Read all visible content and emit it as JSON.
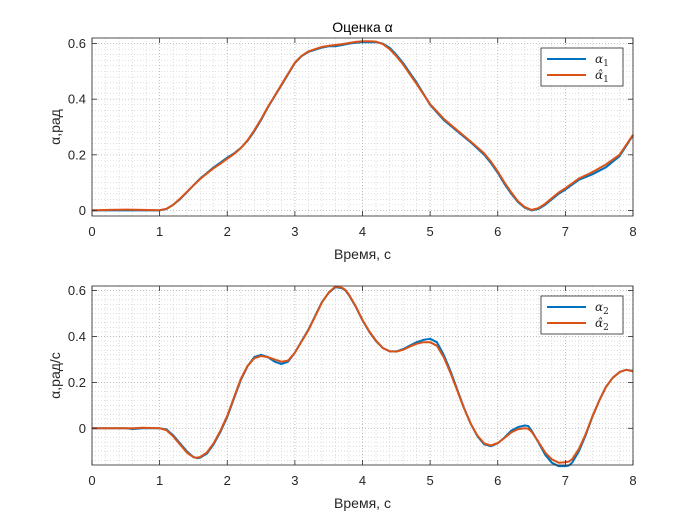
{
  "chart_data": [
    {
      "type": "line",
      "title": "Оценка α",
      "xlabel": "Время, с",
      "ylabel": "α,рад",
      "xlim": [
        0,
        8
      ],
      "ylim": [
        -0.02,
        0.62
      ],
      "xticks": [
        0,
        1,
        2,
        3,
        4,
        5,
        6,
        7,
        8
      ],
      "yticks": [
        0,
        0.2,
        0.4,
        0.6
      ],
      "grid": "minor-dotted",
      "legend_position": "top-right",
      "series": [
        {
          "name": "α1",
          "color": "#0072BD",
          "x": [
            0,
            0.25,
            0.5,
            0.75,
            1.0,
            1.1,
            1.2,
            1.3,
            1.4,
            1.5,
            1.6,
            1.7,
            1.8,
            1.9,
            2.0,
            2.1,
            2.2,
            2.3,
            2.4,
            2.5,
            2.6,
            2.7,
            2.8,
            2.9,
            3.0,
            3.1,
            3.2,
            3.3,
            3.4,
            3.5,
            3.6,
            3.7,
            3.8,
            3.9,
            4.0,
            4.1,
            4.2,
            4.3,
            4.4,
            4.5,
            4.6,
            4.7,
            4.8,
            4.9,
            5.0,
            5.2,
            5.4,
            5.6,
            5.8,
            5.9,
            6.0,
            6.1,
            6.2,
            6.3,
            6.4,
            6.5,
            6.6,
            6.7,
            6.8,
            6.9,
            7.0,
            7.2,
            7.4,
            7.6,
            7.8,
            8.0
          ],
          "values": [
            0.0,
            0.0,
            0.0,
            0.0,
            0.0,
            0.005,
            0.02,
            0.04,
            0.065,
            0.09,
            0.115,
            0.135,
            0.155,
            0.172,
            0.19,
            0.205,
            0.225,
            0.25,
            0.285,
            0.325,
            0.37,
            0.41,
            0.45,
            0.49,
            0.53,
            0.555,
            0.57,
            0.578,
            0.585,
            0.59,
            0.59,
            0.595,
            0.6,
            0.603,
            0.605,
            0.605,
            0.605,
            0.6,
            0.585,
            0.56,
            0.53,
            0.495,
            0.46,
            0.42,
            0.38,
            0.325,
            0.285,
            0.245,
            0.2,
            0.17,
            0.135,
            0.095,
            0.06,
            0.03,
            0.01,
            0.0,
            0.005,
            0.02,
            0.04,
            0.06,
            0.075,
            0.11,
            0.13,
            0.155,
            0.195,
            0.27
          ]
        },
        {
          "name": "α̂1",
          "color": "#D95319",
          "x": [
            0,
            0.25,
            0.5,
            0.75,
            1.0,
            1.1,
            1.2,
            1.3,
            1.4,
            1.5,
            1.6,
            1.7,
            1.8,
            1.9,
            2.0,
            2.1,
            2.2,
            2.3,
            2.4,
            2.5,
            2.6,
            2.7,
            2.8,
            2.9,
            3.0,
            3.1,
            3.2,
            3.3,
            3.4,
            3.5,
            3.6,
            3.7,
            3.8,
            3.9,
            4.0,
            4.1,
            4.2,
            4.3,
            4.4,
            4.5,
            4.6,
            4.7,
            4.8,
            4.9,
            5.0,
            5.2,
            5.4,
            5.6,
            5.8,
            5.9,
            6.0,
            6.1,
            6.2,
            6.3,
            6.4,
            6.5,
            6.6,
            6.7,
            6.8,
            6.9,
            7.0,
            7.2,
            7.4,
            7.6,
            7.8,
            8.0
          ],
          "values": [
            0.0,
            0.002,
            0.003,
            0.002,
            0.001,
            0.006,
            0.02,
            0.042,
            0.066,
            0.09,
            0.113,
            0.133,
            0.152,
            0.168,
            0.186,
            0.203,
            0.224,
            0.252,
            0.288,
            0.328,
            0.372,
            0.412,
            0.452,
            0.492,
            0.532,
            0.556,
            0.572,
            0.58,
            0.588,
            0.592,
            0.595,
            0.598,
            0.602,
            0.606,
            0.608,
            0.608,
            0.607,
            0.598,
            0.58,
            0.555,
            0.525,
            0.49,
            0.455,
            0.418,
            0.382,
            0.33,
            0.288,
            0.248,
            0.205,
            0.175,
            0.14,
            0.1,
            0.065,
            0.033,
            0.012,
            0.002,
            0.008,
            0.024,
            0.044,
            0.064,
            0.08,
            0.115,
            0.138,
            0.165,
            0.2,
            0.272
          ]
        }
      ]
    },
    {
      "type": "line",
      "title": "",
      "xlabel": "Время, с",
      "ylabel": "α,рад/с",
      "xlim": [
        0,
        8
      ],
      "ylim": [
        -0.16,
        0.62
      ],
      "xticks": [
        0,
        1,
        2,
        3,
        4,
        5,
        6,
        7,
        8
      ],
      "yticks": [
        0,
        0.2,
        0.4,
        0.6
      ],
      "grid": "minor-dotted",
      "legend_position": "top-right",
      "series": [
        {
          "name": "α2",
          "color": "#0072BD",
          "x": [
            0,
            0.25,
            0.5,
            0.6,
            0.75,
            1.0,
            1.1,
            1.2,
            1.3,
            1.4,
            1.5,
            1.55,
            1.6,
            1.7,
            1.8,
            1.9,
            2.0,
            2.1,
            2.2,
            2.3,
            2.4,
            2.5,
            2.6,
            2.7,
            2.8,
            2.9,
            3.0,
            3.1,
            3.2,
            3.3,
            3.4,
            3.5,
            3.6,
            3.7,
            3.75,
            3.8,
            3.9,
            4.0,
            4.1,
            4.2,
            4.3,
            4.4,
            4.5,
            4.6,
            4.7,
            4.8,
            4.9,
            5.0,
            5.1,
            5.2,
            5.3,
            5.4,
            5.5,
            5.6,
            5.7,
            5.8,
            5.9,
            6.0,
            6.1,
            6.2,
            6.3,
            6.4,
            6.45,
            6.5,
            6.6,
            6.7,
            6.8,
            6.9,
            7.0,
            7.05,
            7.1,
            7.2,
            7.3,
            7.4,
            7.5,
            7.6,
            7.7,
            7.8,
            7.9,
            8.0
          ],
          "values": [
            0.0,
            0.0,
            0.0,
            -0.003,
            0.0,
            0.0,
            -0.005,
            -0.03,
            -0.065,
            -0.1,
            -0.125,
            -0.13,
            -0.128,
            -0.11,
            -0.07,
            -0.015,
            0.05,
            0.13,
            0.21,
            0.27,
            0.31,
            0.32,
            0.31,
            0.29,
            0.28,
            0.29,
            0.33,
            0.38,
            0.43,
            0.49,
            0.55,
            0.59,
            0.615,
            0.61,
            0.6,
            0.58,
            0.53,
            0.47,
            0.42,
            0.38,
            0.35,
            0.335,
            0.335,
            0.345,
            0.36,
            0.375,
            0.385,
            0.39,
            0.375,
            0.32,
            0.25,
            0.17,
            0.09,
            0.02,
            -0.035,
            -0.07,
            -0.078,
            -0.065,
            -0.04,
            -0.01,
            0.005,
            0.012,
            0.01,
            -0.01,
            -0.06,
            -0.115,
            -0.15,
            -0.165,
            -0.165,
            -0.162,
            -0.15,
            -0.1,
            -0.03,
            0.05,
            0.12,
            0.18,
            0.22,
            0.245,
            0.255,
            0.25
          ]
        },
        {
          "name": "α̂2",
          "color": "#D95319",
          "x": [
            0,
            0.25,
            0.5,
            0.6,
            0.75,
            1.0,
            1.1,
            1.2,
            1.3,
            1.4,
            1.5,
            1.55,
            1.6,
            1.7,
            1.8,
            1.9,
            2.0,
            2.1,
            2.2,
            2.3,
            2.4,
            2.5,
            2.6,
            2.7,
            2.8,
            2.9,
            3.0,
            3.1,
            3.2,
            3.3,
            3.4,
            3.5,
            3.6,
            3.7,
            3.75,
            3.8,
            3.9,
            4.0,
            4.1,
            4.2,
            4.3,
            4.4,
            4.5,
            4.6,
            4.7,
            4.8,
            4.9,
            5.0,
            5.1,
            5.2,
            5.3,
            5.4,
            5.5,
            5.6,
            5.7,
            5.8,
            5.9,
            6.0,
            6.1,
            6.2,
            6.3,
            6.4,
            6.45,
            6.5,
            6.6,
            6.7,
            6.8,
            6.9,
            7.0,
            7.05,
            7.1,
            7.2,
            7.3,
            7.4,
            7.5,
            7.6,
            7.7,
            7.8,
            7.9,
            8.0
          ],
          "values": [
            0.0,
            0.0,
            0.0,
            0.0,
            0.002,
            0.0,
            -0.008,
            -0.035,
            -0.07,
            -0.105,
            -0.126,
            -0.128,
            -0.125,
            -0.105,
            -0.065,
            -0.01,
            0.055,
            0.135,
            0.215,
            0.272,
            0.305,
            0.315,
            0.31,
            0.3,
            0.29,
            0.295,
            0.33,
            0.378,
            0.428,
            0.488,
            0.548,
            0.592,
            0.618,
            0.612,
            0.602,
            0.582,
            0.532,
            0.472,
            0.422,
            0.382,
            0.35,
            0.336,
            0.334,
            0.342,
            0.356,
            0.368,
            0.375,
            0.375,
            0.36,
            0.31,
            0.242,
            0.165,
            0.088,
            0.02,
            -0.032,
            -0.066,
            -0.075,
            -0.064,
            -0.042,
            -0.018,
            -0.004,
            0.0,
            -0.002,
            -0.015,
            -0.058,
            -0.105,
            -0.135,
            -0.15,
            -0.148,
            -0.145,
            -0.135,
            -0.09,
            -0.025,
            0.052,
            0.12,
            0.18,
            0.22,
            0.245,
            0.255,
            0.248
          ]
        }
      ]
    }
  ]
}
